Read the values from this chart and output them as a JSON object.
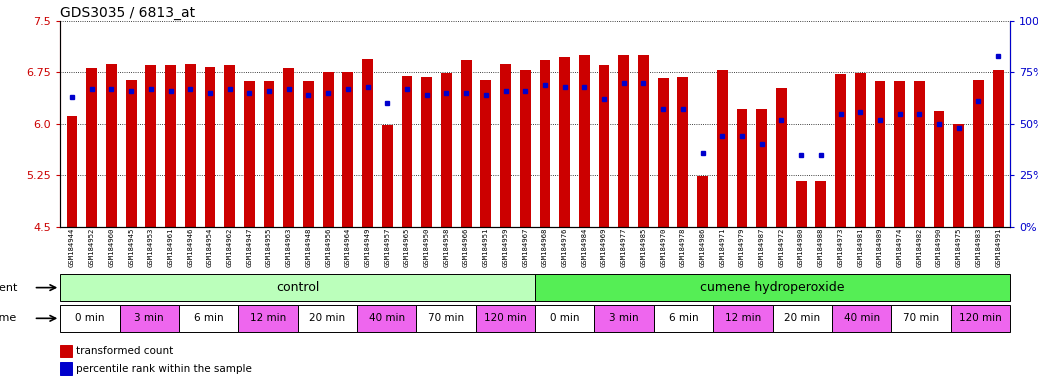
{
  "title": "GDS3035 / 6813_at",
  "ylim_left": [
    4.5,
    7.5
  ],
  "ylim_right": [
    0,
    100
  ],
  "yticks_left": [
    4.5,
    5.25,
    6.0,
    6.75,
    7.5
  ],
  "yticks_right": [
    0,
    25,
    50,
    75,
    100
  ],
  "samples": [
    "GSM184944",
    "GSM184952",
    "GSM184960",
    "GSM184945",
    "GSM184953",
    "GSM184961",
    "GSM184946",
    "GSM184954",
    "GSM184962",
    "GSM184947",
    "GSM184955",
    "GSM184963",
    "GSM184948",
    "GSM184956",
    "GSM184964",
    "GSM184949",
    "GSM184957",
    "GSM184965",
    "GSM184950",
    "GSM184958",
    "GSM184966",
    "GSM184951",
    "GSM184959",
    "GSM184967",
    "GSM184968",
    "GSM184976",
    "GSM184984",
    "GSM184969",
    "GSM184977",
    "GSM184985",
    "GSM184970",
    "GSM184978",
    "GSM184986",
    "GSM184971",
    "GSM184979",
    "GSM184987",
    "GSM184972",
    "GSM184980",
    "GSM184988",
    "GSM184973",
    "GSM184981",
    "GSM184989",
    "GSM184974",
    "GSM184982",
    "GSM184990",
    "GSM184975",
    "GSM184983",
    "GSM184991"
  ],
  "bar_values": [
    6.12,
    6.82,
    6.88,
    6.64,
    6.86,
    6.86,
    6.88,
    6.83,
    6.86,
    6.63,
    6.62,
    6.82,
    6.63,
    6.76,
    6.76,
    6.95,
    5.98,
    6.7,
    6.68,
    6.74,
    6.93,
    6.64,
    6.88,
    6.79,
    6.93,
    6.97,
    7.0,
    6.86,
    7.0,
    7.0,
    6.67,
    6.69,
    5.24,
    6.78,
    6.21,
    6.22,
    6.52,
    5.17,
    5.16,
    6.73,
    6.74,
    6.62,
    6.62,
    6.62,
    6.19,
    6.0,
    6.64,
    6.79
  ],
  "percentile_values": [
    63,
    67,
    67,
    66,
    67,
    66,
    67,
    65,
    67,
    65,
    66,
    67,
    64,
    65,
    67,
    68,
    60,
    67,
    64,
    65,
    65,
    64,
    66,
    66,
    69,
    68,
    68,
    62,
    70,
    70,
    57,
    57,
    36,
    44,
    44,
    40,
    52,
    35,
    35,
    55,
    56,
    52,
    55,
    55,
    50,
    48,
    61,
    83
  ],
  "bar_color": "#cc0000",
  "dot_color": "#0000cc",
  "agent_control_color": "#bbffbb",
  "agent_cumene_color": "#55ee55",
  "time_white_color": "#ffffff",
  "time_pink_color": "#ee66ee",
  "time_labels_control": [
    "0 min",
    "3 min",
    "6 min",
    "12 min",
    "20 min",
    "40 min",
    "70 min",
    "120 min"
  ],
  "time_labels_cumene": [
    "0 min",
    "3 min",
    "6 min",
    "12 min",
    "20 min",
    "40 min",
    "70 min",
    "120 min"
  ],
  "time_counts_control": [
    3,
    3,
    3,
    3,
    3,
    3,
    3,
    3
  ],
  "time_counts_cumene": [
    3,
    3,
    3,
    3,
    3,
    3,
    3,
    3
  ],
  "time_colors_control": [
    "#ffffff",
    "#ee66ee",
    "#ffffff",
    "#ee66ee",
    "#ffffff",
    "#ee66ee",
    "#ffffff",
    "#ee66ee"
  ],
  "time_colors_cumene": [
    "#ffffff",
    "#ee66ee",
    "#ffffff",
    "#ee66ee",
    "#ffffff",
    "#ee66ee",
    "#ffffff",
    "#ee66ee"
  ],
  "control_count": 24,
  "cumene_count": 24,
  "ymin": 4.5
}
